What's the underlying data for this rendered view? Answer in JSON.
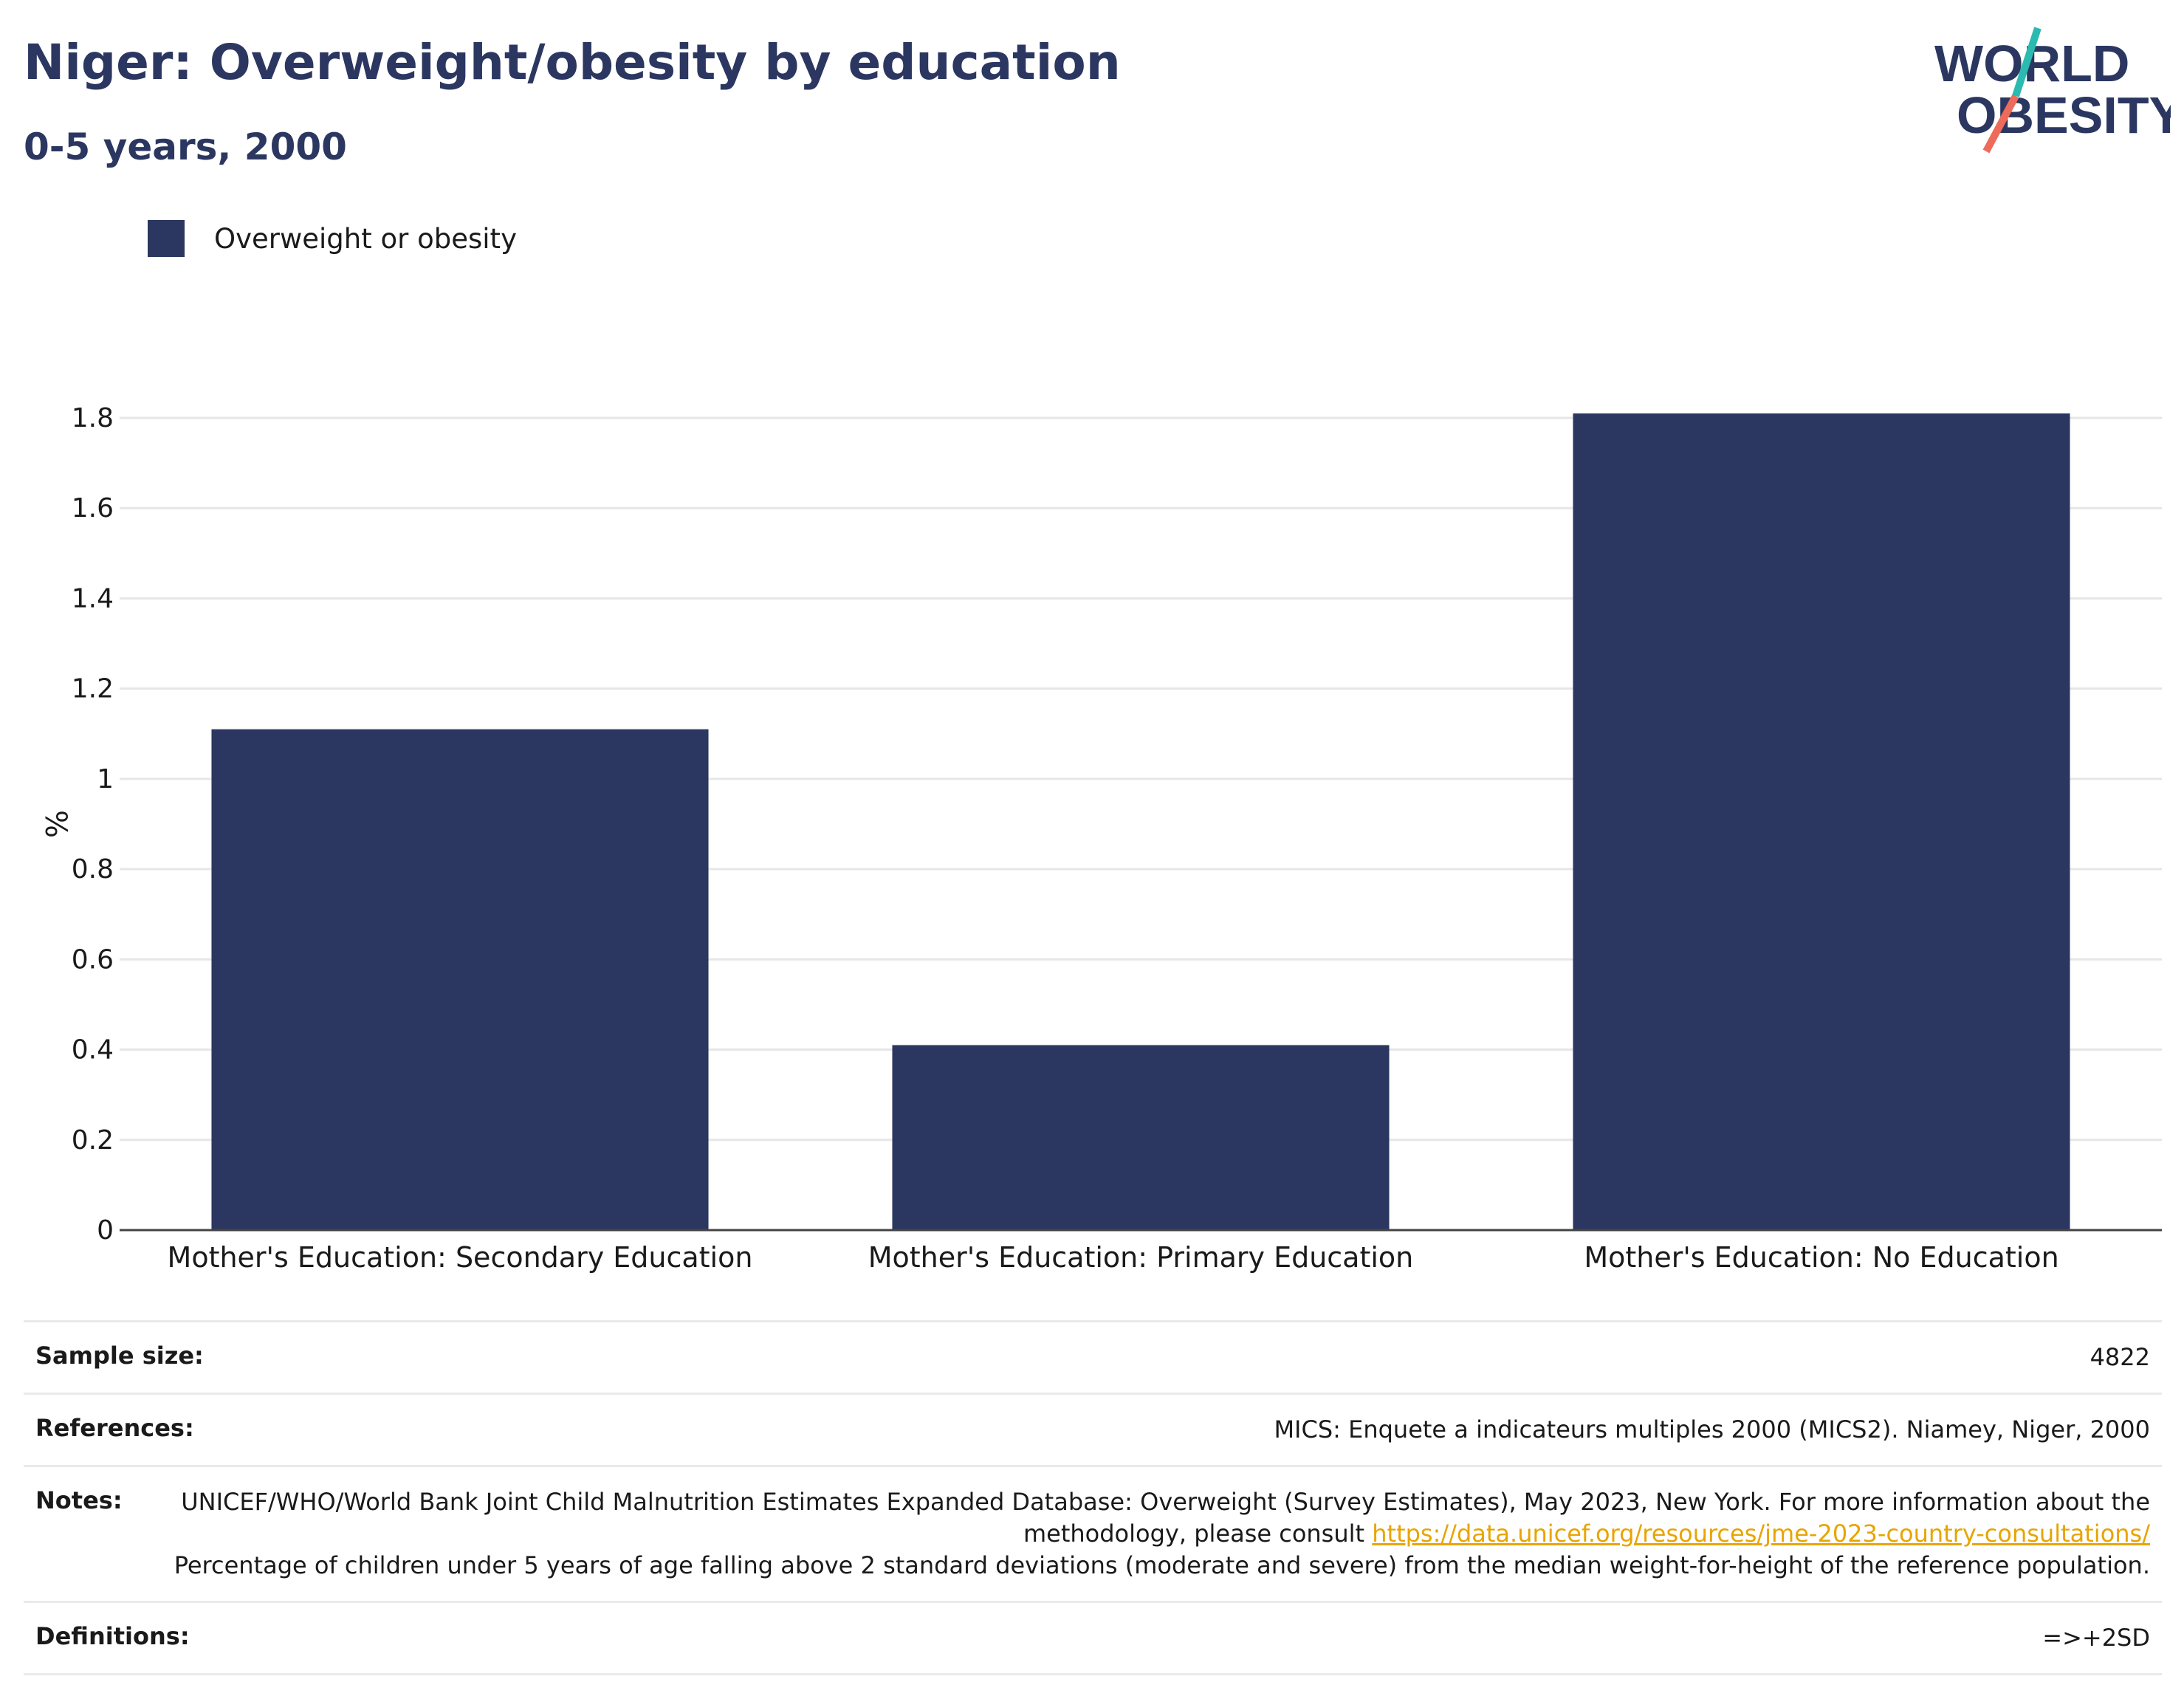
{
  "header": {
    "title": "Niger: Overweight/obesity by education",
    "subtitle": "0-5 years, 2000"
  },
  "logo": {
    "line1": "WORLD",
    "line2": "OBESITY"
  },
  "colors": {
    "bar": "#2b3760",
    "text_dark": "#2b3760",
    "grid": "#e6e6e6",
    "link": "#e8a400",
    "logo_teal": "#2bbab0",
    "logo_coral": "#ee6a5a"
  },
  "chart_data": {
    "type": "bar",
    "categories": [
      "Mother's Education: Secondary Education",
      "Mother's Education: Primary Education",
      "Mother's Education: No Education"
    ],
    "series": [
      {
        "name": "Overweight or obesity",
        "values": [
          1.11,
          0.41,
          1.81
        ]
      }
    ],
    "ylabel": "%",
    "ylim": [
      0,
      1.8
    ],
    "yticks": [
      0,
      0.2,
      0.4,
      0.6,
      0.8,
      1,
      1.2,
      1.4,
      1.6,
      1.8
    ],
    "ytick_labels": [
      "0",
      "0.2",
      "0.4",
      "0.6",
      "0.8",
      "1",
      "1.2",
      "1.4",
      "1.6",
      "1.8"
    ],
    "grid": true,
    "legend": "top-left"
  },
  "meta": {
    "sample_size": {
      "label": "Sample size:",
      "value": "4822"
    },
    "references": {
      "label": "References:",
      "value": "MICS: Enquete a indicateurs multiples 2000 (MICS2). Niamey, Niger, 2000"
    },
    "notes": {
      "label": "Notes:",
      "text1": "UNICEF/WHO/World Bank Joint Child Malnutrition Estimates Expanded Database: Overweight (Survey Estimates), May 2023, New York. For more information about the methodology, please consult ",
      "link": "https://data.unicef.org/resources/jme-2023-country-consultations/",
      "text2": "Percentage of children under 5 years of age falling above 2 standard deviations (moderate and severe) from the median weight-for-height of the reference population."
    },
    "definitions": {
      "label": "Definitions:",
      "value": "=>+2SD"
    }
  }
}
